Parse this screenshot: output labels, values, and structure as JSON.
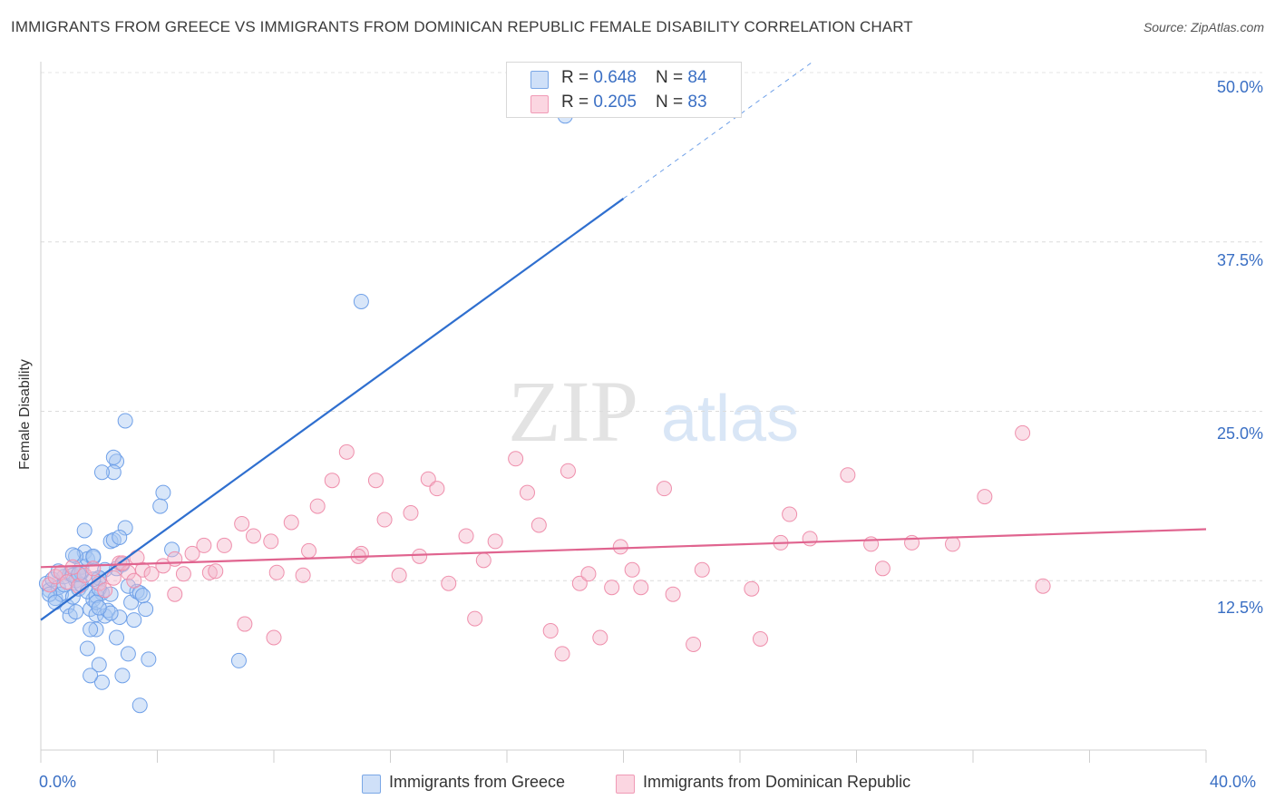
{
  "header": {
    "title": "IMMIGRANTS FROM GREECE VS IMMIGRANTS FROM DOMINICAN REPUBLIC FEMALE DISABILITY CORRELATION CHART",
    "source": "Source: ZipAtlas.com"
  },
  "watermark": {
    "zip": "ZIP",
    "atlas": "atlas"
  },
  "legend": {
    "rows": [
      {
        "r_label": "R = ",
        "r_value": "0.648",
        "n_label": "N = ",
        "n_value": "84",
        "color": "#a9c8f2"
      },
      {
        "r_label": "R = ",
        "r_value": "0.205",
        "n_label": "N = ",
        "n_value": "83",
        "color": "#f5b8cb"
      }
    ]
  },
  "chart_data": {
    "type": "scatter",
    "title": "IMMIGRANTS FROM GREECE VS IMMIGRANTS FROM DOMINICAN REPUBLIC FEMALE DISABILITY CORRELATION CHART",
    "xlabel": "",
    "ylabel": "Female Disability",
    "xlim": [
      0,
      40
    ],
    "ylim": [
      0,
      50
    ],
    "x_tick_labels": [
      "0.0%",
      "40.0%"
    ],
    "y_tick_labels": [
      "12.5%",
      "25.0%",
      "37.5%",
      "50.0%"
    ],
    "y_ticks": [
      12.5,
      25.0,
      37.5,
      50.0
    ],
    "grid": true,
    "legend_position": "top-center",
    "series": [
      {
        "name": "Immigrants from Greece",
        "color": "#6fa0e8",
        "fill": "#a9c8f2",
        "line_color": "#2f6fcf",
        "trend": {
          "x0": 0.0,
          "y0": 9.6,
          "x1": 20.0,
          "y1": 40.7,
          "dashed_to_x": 26.5,
          "dashed_to_y": 50.8
        },
        "points": [
          [
            0.2,
            12.3
          ],
          [
            0.3,
            11.8
          ],
          [
            0.4,
            12.6
          ],
          [
            0.5,
            11.2
          ],
          [
            0.6,
            12.0
          ],
          [
            0.7,
            11.5
          ],
          [
            0.8,
            12.8
          ],
          [
            0.9,
            10.6
          ],
          [
            1.0,
            13.0
          ],
          [
            1.1,
            11.3
          ],
          [
            1.2,
            12.5
          ],
          [
            1.3,
            11.9
          ],
          [
            1.4,
            13.5
          ],
          [
            1.5,
            14.6
          ],
          [
            1.6,
            14.1
          ],
          [
            1.7,
            10.4
          ],
          [
            1.8,
            11.1
          ],
          [
            1.9,
            10.0
          ],
          [
            2.0,
            12.7
          ],
          [
            2.1,
            11.6
          ],
          [
            2.2,
            9.9
          ],
          [
            2.3,
            10.3
          ],
          [
            2.4,
            15.4
          ],
          [
            2.5,
            15.5
          ],
          [
            2.6,
            13.4
          ],
          [
            2.7,
            9.8
          ],
          [
            2.8,
            13.7
          ],
          [
            2.9,
            16.4
          ],
          [
            3.0,
            12.1
          ],
          [
            3.1,
            10.9
          ],
          [
            0.3,
            11.5
          ],
          [
            0.5,
            10.9
          ],
          [
            0.6,
            13.2
          ],
          [
            0.8,
            12.2
          ],
          [
            1.0,
            9.9
          ],
          [
            1.1,
            12.9
          ],
          [
            1.2,
            10.2
          ],
          [
            1.3,
            13.0
          ],
          [
            1.4,
            12.2
          ],
          [
            1.6,
            11.7
          ],
          [
            1.8,
            14.2
          ],
          [
            1.9,
            11.4
          ],
          [
            2.0,
            11.9
          ],
          [
            2.2,
            13.3
          ],
          [
            2.4,
            10.1
          ],
          [
            1.2,
            14.3
          ],
          [
            1.5,
            16.2
          ],
          [
            1.8,
            14.3
          ],
          [
            1.9,
            8.9
          ],
          [
            2.0,
            6.3
          ],
          [
            1.6,
            7.5
          ],
          [
            2.0,
            12.7
          ],
          [
            2.1,
            5.0
          ],
          [
            1.4,
            13.1
          ],
          [
            1.3,
            13.0
          ],
          [
            1.7,
            8.9
          ],
          [
            1.1,
            14.4
          ],
          [
            2.6,
            8.3
          ],
          [
            2.7,
            15.7
          ],
          [
            2.6,
            21.3
          ],
          [
            2.5,
            20.5
          ],
          [
            2.5,
            21.6
          ],
          [
            1.7,
            5.5
          ],
          [
            2.8,
            5.5
          ],
          [
            2.9,
            24.3
          ],
          [
            3.3,
            11.7
          ],
          [
            3.2,
            9.6
          ],
          [
            3.0,
            7.1
          ],
          [
            3.7,
            6.7
          ],
          [
            3.4,
            11.6
          ],
          [
            3.6,
            10.4
          ],
          [
            3.4,
            3.3
          ],
          [
            3.5,
            11.4
          ],
          [
            4.5,
            14.8
          ],
          [
            4.2,
            19.0
          ],
          [
            4.1,
            18.0
          ],
          [
            2.1,
            20.5
          ],
          [
            1.8,
            12.6
          ],
          [
            11.0,
            33.1
          ],
          [
            18.0,
            46.8
          ],
          [
            6.8,
            6.6
          ],
          [
            1.9,
            10.9
          ],
          [
            2.4,
            11.5
          ],
          [
            2.0,
            10.5
          ]
        ]
      },
      {
        "name": "Immigrants from Dominican Republic",
        "color": "#ef8fac",
        "fill": "#f5b8cb",
        "line_color": "#e0648f",
        "trend": {
          "x0": 0.0,
          "y0": 13.5,
          "x1": 40.0,
          "y1": 16.3
        },
        "points": [
          [
            0.3,
            12.2
          ],
          [
            0.5,
            12.8
          ],
          [
            0.7,
            13.1
          ],
          [
            0.9,
            12.4
          ],
          [
            1.1,
            13.5
          ],
          [
            1.3,
            12.1
          ],
          [
            1.5,
            12.9
          ],
          [
            1.8,
            13.4
          ],
          [
            2.0,
            12.3
          ],
          [
            2.2,
            11.8
          ],
          [
            2.5,
            12.7
          ],
          [
            2.7,
            13.8
          ],
          [
            3.0,
            13.1
          ],
          [
            3.3,
            14.2
          ],
          [
            3.5,
            13.3
          ],
          [
            3.8,
            13.0
          ],
          [
            4.2,
            13.6
          ],
          [
            4.6,
            14.1
          ],
          [
            4.9,
            13.0
          ],
          [
            5.2,
            14.5
          ],
          [
            5.6,
            15.1
          ],
          [
            5.8,
            13.1
          ],
          [
            6.3,
            15.1
          ],
          [
            6.9,
            16.7
          ],
          [
            7.3,
            15.8
          ],
          [
            7.9,
            15.4
          ],
          [
            8.1,
            13.1
          ],
          [
            8.6,
            16.8
          ],
          [
            9.0,
            12.9
          ],
          [
            9.5,
            18.0
          ],
          [
            10.0,
            19.9
          ],
          [
            10.5,
            22.0
          ],
          [
            11.0,
            14.5
          ],
          [
            11.5,
            19.9
          ],
          [
            11.8,
            17.0
          ],
          [
            12.3,
            12.9
          ],
          [
            12.7,
            17.5
          ],
          [
            13.3,
            20.0
          ],
          [
            13.6,
            19.3
          ],
          [
            14.0,
            12.3
          ],
          [
            14.6,
            15.8
          ],
          [
            14.9,
            9.7
          ],
          [
            15.2,
            14.0
          ],
          [
            15.6,
            15.4
          ],
          [
            16.3,
            21.5
          ],
          [
            16.7,
            19.0
          ],
          [
            17.1,
            16.6
          ],
          [
            17.5,
            8.8
          ],
          [
            17.9,
            7.1
          ],
          [
            18.1,
            20.6
          ],
          [
            18.5,
            12.3
          ],
          [
            18.8,
            13.0
          ],
          [
            19.2,
            8.3
          ],
          [
            19.6,
            12.0
          ],
          [
            19.9,
            15.0
          ],
          [
            20.3,
            13.3
          ],
          [
            20.6,
            12.0
          ],
          [
            21.4,
            19.3
          ],
          [
            21.7,
            11.5
          ],
          [
            22.4,
            7.8
          ],
          [
            22.7,
            13.3
          ],
          [
            24.4,
            11.9
          ],
          [
            24.7,
            8.2
          ],
          [
            25.4,
            15.3
          ],
          [
            25.7,
            17.4
          ],
          [
            26.4,
            15.6
          ],
          [
            27.7,
            20.3
          ],
          [
            28.5,
            15.2
          ],
          [
            28.9,
            13.4
          ],
          [
            29.9,
            15.3
          ],
          [
            31.3,
            15.2
          ],
          [
            32.4,
            18.7
          ],
          [
            33.7,
            23.4
          ],
          [
            34.4,
            12.1
          ],
          [
            2.8,
            13.8
          ],
          [
            4.6,
            11.5
          ],
          [
            6.0,
            13.2
          ],
          [
            8.0,
            8.3
          ],
          [
            9.2,
            14.7
          ],
          [
            3.2,
            12.5
          ],
          [
            10.9,
            14.3
          ],
          [
            7.0,
            9.3
          ],
          [
            13.0,
            14.3
          ]
        ]
      }
    ]
  },
  "bottom_legend": [
    {
      "label": "Immigrants from Greece",
      "color": "#a9c8f2"
    },
    {
      "label": "Immigrants from Dominican Republic",
      "color": "#f5b8cb"
    }
  ]
}
